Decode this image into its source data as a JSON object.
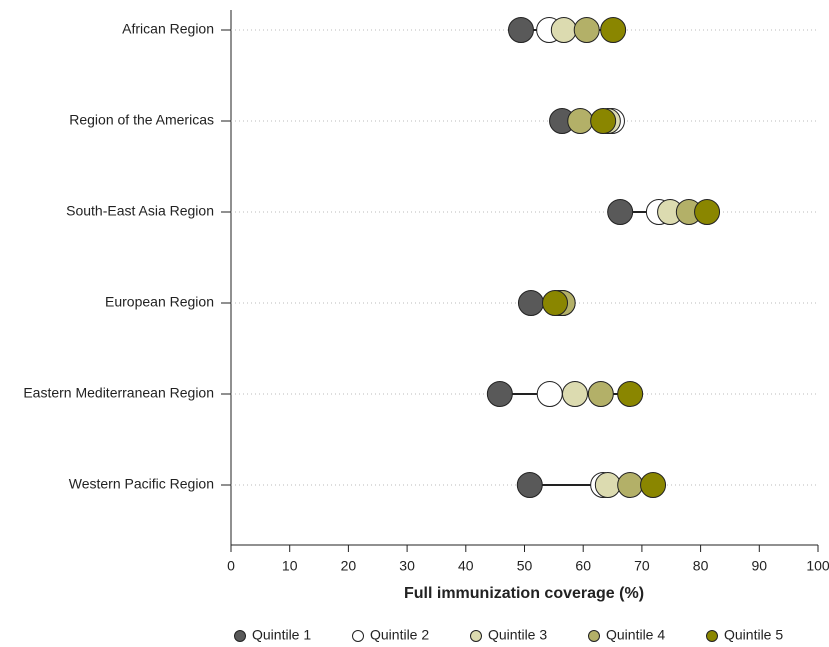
{
  "chart_data": {
    "type": "dot",
    "xlabel": "Full immunization coverage (%)",
    "categories": [
      "African Region",
      "Region of the Americas",
      "South-East Asia Region",
      "European Region",
      "Eastern Mediterranean Region",
      "Western Pacific Region"
    ],
    "series": [
      {
        "name": "Quintile 1",
        "color": "#595959",
        "values": [
          49.4,
          56.4,
          66.3,
          51.1,
          45.8,
          50.9
        ]
      },
      {
        "name": "Quintile 2",
        "color": "#ffffff",
        "values": [
          54.2,
          64.9,
          72.9,
          55.8,
          54.3,
          63.4
        ]
      },
      {
        "name": "Quintile 3",
        "color": "#dcdbb0",
        "values": [
          56.7,
          64.2,
          74.8,
          56.5,
          58.6,
          64.2
        ]
      },
      {
        "name": "Quintile 4",
        "color": "#b3b068",
        "values": [
          60.6,
          59.5,
          78.0,
          56.5,
          63.0,
          68.0
        ]
      },
      {
        "name": "Quintile 5",
        "color": "#8a8600",
        "values": [
          65.1,
          63.4,
          81.1,
          55.2,
          68.0,
          71.9
        ]
      }
    ],
    "xlim": [
      0,
      100
    ],
    "xticks": [
      0,
      10,
      20,
      30,
      40,
      50,
      60,
      70,
      80,
      90,
      100
    ],
    "grid": true
  }
}
